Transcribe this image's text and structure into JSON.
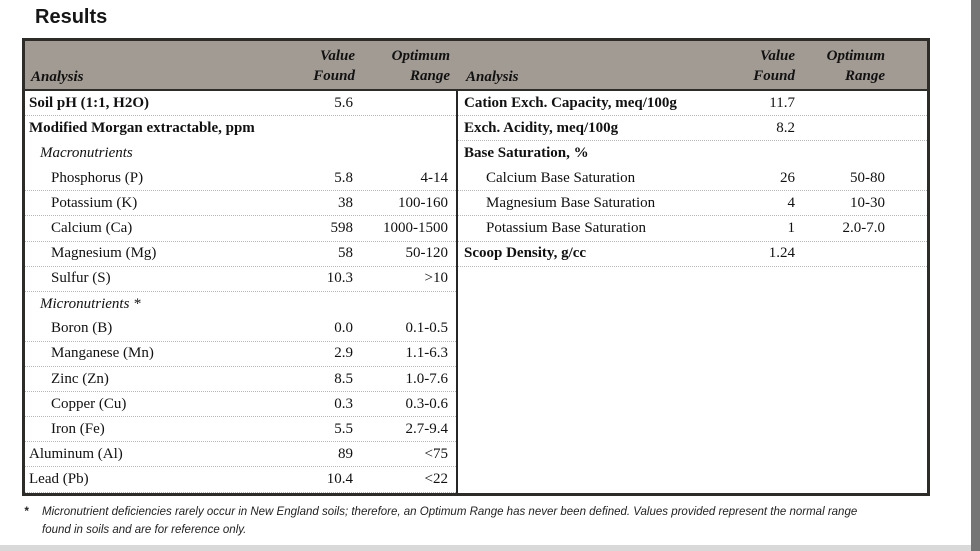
{
  "page": {
    "title": "Results"
  },
  "table": {
    "headers": {
      "analysis": "Analysis",
      "value_line1": "Value",
      "value_line2": "Found",
      "range_line1": "Optimum",
      "range_line2": "Range"
    },
    "left_rows": [
      {
        "label": "Soil pH (1:1, H2O)",
        "value": "5.6",
        "range": "",
        "style": "bold",
        "indent": 0,
        "dotted": true
      },
      {
        "label": "Modified Morgan extractable, ppm",
        "value": "",
        "range": "",
        "style": "bold",
        "indent": 0,
        "dotted": false
      },
      {
        "label": "Macronutrients",
        "value": "",
        "range": "",
        "style": "italic",
        "indent": 1,
        "dotted": false
      },
      {
        "label": "Phosphorus (P)",
        "value": "5.8",
        "range": "4-14",
        "style": "plain",
        "indent": 2,
        "dotted": true
      },
      {
        "label": "Potassium (K)",
        "value": "38",
        "range": "100-160",
        "style": "plain",
        "indent": 2,
        "dotted": true
      },
      {
        "label": "Calcium (Ca)",
        "value": "598",
        "range": "1000-1500",
        "style": "plain",
        "indent": 2,
        "dotted": true
      },
      {
        "label": "Magnesium (Mg)",
        "value": "58",
        "range": "50-120",
        "style": "plain",
        "indent": 2,
        "dotted": true
      },
      {
        "label": "Sulfur (S)",
        "value": "10.3",
        "range": ">10",
        "style": "plain",
        "indent": 2,
        "dotted": true
      },
      {
        "label": "Micronutrients *",
        "value": "",
        "range": "",
        "style": "italic",
        "indent": 1,
        "dotted": false
      },
      {
        "label": "Boron (B)",
        "value": "0.0",
        "range": "0.1-0.5",
        "style": "plain",
        "indent": 2,
        "dotted": true
      },
      {
        "label": "Manganese (Mn)",
        "value": "2.9",
        "range": "1.1-6.3",
        "style": "plain",
        "indent": 2,
        "dotted": true
      },
      {
        "label": "Zinc (Zn)",
        "value": "8.5",
        "range": "1.0-7.6",
        "style": "plain",
        "indent": 2,
        "dotted": true
      },
      {
        "label": "Copper (Cu)",
        "value": "0.3",
        "range": "0.3-0.6",
        "style": "plain",
        "indent": 2,
        "dotted": true
      },
      {
        "label": "Iron (Fe)",
        "value": "5.5",
        "range": "2.7-9.4",
        "style": "plain",
        "indent": 2,
        "dotted": true
      },
      {
        "label": "Aluminum (Al)",
        "value": "89",
        "range": "<75",
        "style": "plain",
        "indent": 0,
        "dotted": true
      },
      {
        "label": "Lead (Pb)",
        "value": "10.4",
        "range": "<22",
        "style": "plain",
        "indent": 0,
        "dotted": true
      }
    ],
    "right_rows": [
      {
        "label": "Cation Exch. Capacity, meq/100g",
        "value": "11.7",
        "range": "",
        "style": "bold",
        "indent": 0,
        "dotted": true
      },
      {
        "label": "Exch. Acidity, meq/100g",
        "value": "8.2",
        "range": "",
        "style": "bold",
        "indent": 0,
        "dotted": true
      },
      {
        "label": "Base Saturation, %",
        "value": "",
        "range": "",
        "style": "bold",
        "indent": 0,
        "dotted": false
      },
      {
        "label": "Calcium Base Saturation",
        "value": "26",
        "range": "50-80",
        "style": "plain",
        "indent": 2,
        "dotted": true
      },
      {
        "label": "Magnesium Base Saturation",
        "value": "4",
        "range": "10-30",
        "style": "plain",
        "indent": 2,
        "dotted": true
      },
      {
        "label": "Potassium Base Saturation",
        "value": "1",
        "range": "2.0-7.0",
        "style": "plain",
        "indent": 2,
        "dotted": true
      },
      {
        "label": "Scoop Density, g/cc",
        "value": "1.24",
        "range": "",
        "style": "bold",
        "indent": 0,
        "dotted": true
      }
    ]
  },
  "footnote": {
    "marker": "*",
    "line1": "Micronutrient deficiencies rarely occur in New England soils; therefore, an Optimum Range has never been defined. Values provided represent the normal range",
    "line2": "found in soils and are for reference only."
  },
  "colors": {
    "header_bg": "#a29b93",
    "table_border": "#2e2c29",
    "right_strip": "#757575",
    "bottom_strip": "#d9d9d9"
  }
}
